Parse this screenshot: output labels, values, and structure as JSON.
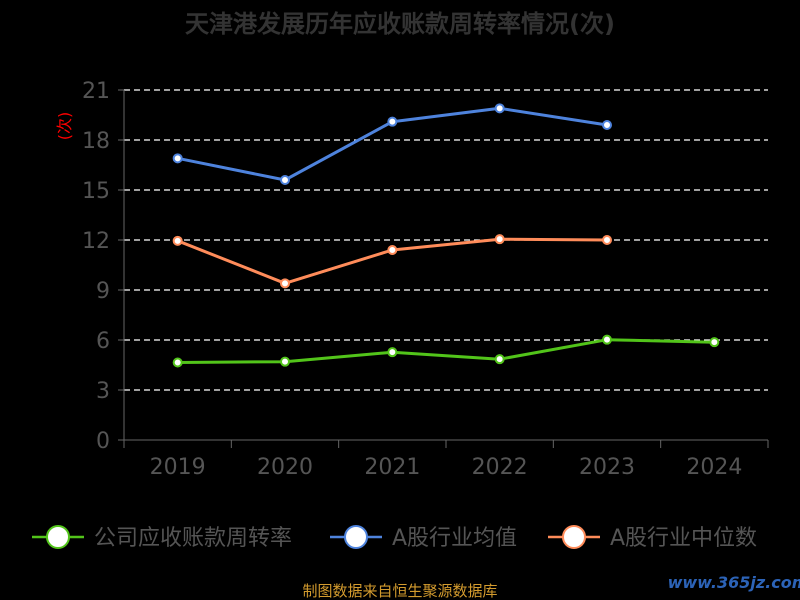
{
  "chart_data": {
    "type": "line",
    "title": "天津港发展历年应收账款周转率情况(次)",
    "ylabel": "(次)",
    "xlabel": "",
    "categories": [
      "2019",
      "2020",
      "2021",
      "2022",
      "2023",
      "2024"
    ],
    "yticks": [
      "0",
      "3",
      "6",
      "9",
      "12",
      "15",
      "18",
      "21"
    ],
    "ylim": [
      0,
      21
    ],
    "grid": true,
    "legend_position": "bottom",
    "series": [
      {
        "name": "公司应收账款周转率",
        "color": "#52c41a",
        "values": [
          4.65,
          4.7,
          5.27,
          4.85,
          6.02,
          5.87
        ]
      },
      {
        "name": "A股行业均值",
        "color": "#4e83dd",
        "values": [
          16.9,
          15.6,
          19.1,
          19.9,
          18.9,
          null
        ]
      },
      {
        "name": "A股行业中位数",
        "color": "#ff8c5a",
        "values": [
          11.95,
          9.4,
          11.4,
          12.05,
          12.0,
          null
        ]
      }
    ]
  },
  "footer": {
    "source": "制图数据来自恒生聚源数据库",
    "watermark": "www.365jz.com"
  }
}
